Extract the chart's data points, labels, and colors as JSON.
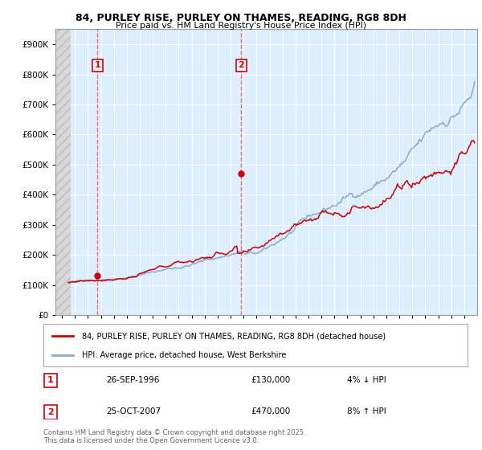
{
  "title1": "84, PURLEY RISE, PURLEY ON THAMES, READING, RG8 8DH",
  "title2": "Price paid vs. HM Land Registry's House Price Index (HPI)",
  "ylim": [
    0,
    950000
  ],
  "yticks": [
    0,
    100000,
    200000,
    300000,
    400000,
    500000,
    600000,
    700000,
    800000,
    900000
  ],
  "ytick_labels": [
    "£0",
    "£100K",
    "£200K",
    "£300K",
    "£400K",
    "£500K",
    "£600K",
    "£700K",
    "£800K",
    "£900K"
  ],
  "background_color": "#ffffff",
  "plot_bg_color": "#ddeeff",
  "grid_color": "#ffffff",
  "line1_color": "#cc0000",
  "line2_color": "#88aacc",
  "vline1_x": 1996.74,
  "vline2_x": 2007.81,
  "marker1_x": 1996.74,
  "marker1_y": 130000,
  "marker2_x": 2007.81,
  "marker2_y": 470000,
  "legend_line1": "84, PURLEY RISE, PURLEY ON THAMES, READING, RG8 8DH (detached house)",
  "legend_line2": "HPI: Average price, detached house, West Berkshire",
  "table_rows": [
    {
      "num": "1",
      "date": "26-SEP-1996",
      "price": "£130,000",
      "hpi": "4% ↓ HPI"
    },
    {
      "num": "2",
      "date": "25-OCT-2007",
      "price": "£470,000",
      "hpi": "8% ↑ HPI"
    }
  ],
  "footnote": "Contains HM Land Registry data © Crown copyright and database right 2025.\nThis data is licensed under the Open Government Licence v3.0.",
  "xmin": 1993.5,
  "xmax": 2026.0
}
